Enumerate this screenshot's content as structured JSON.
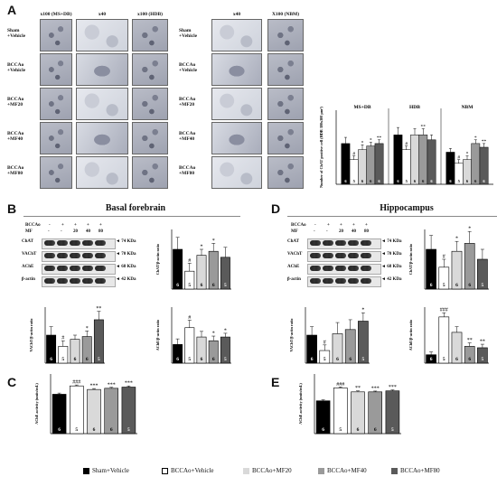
{
  "colors": {
    "black": "#000000",
    "white": "#ffffff",
    "light": "#d9d9d9",
    "mid": "#9a9a9a",
    "dark": "#5a5a5a"
  },
  "panels": {
    "A": {
      "letter": "A",
      "left_cols": [
        "x100  (MS+DB)",
        "x40",
        "x100  (HDB)"
      ],
      "right_cols": [
        "x40",
        "X100 (NBM)"
      ],
      "rows": [
        "Sham\n+Vehicle",
        "BCCAo\n+Vehicle",
        "BCCAo\n+MF20",
        "BCCAo\n+MF40",
        "BCCAo\n+MF80"
      ]
    },
    "B": {
      "letter": "B",
      "title": "Basal forebrain"
    },
    "C": {
      "letter": "C"
    },
    "D": {
      "letter": "D",
      "title": "Hippocampus"
    },
    "E": {
      "letter": "E"
    }
  },
  "blots": {
    "treat_label_bccao": "BCCAo",
    "treat_label_mf": "MF",
    "bccao_signs": [
      "-",
      "+",
      "+",
      "+",
      "+"
    ],
    "mf_doses": [
      "-",
      "-",
      "20",
      "40",
      "80"
    ],
    "rows_B": [
      {
        "name": "ChAT",
        "kda": "74 KDa"
      },
      {
        "name": "VAChT",
        "kda": "70 KDa"
      },
      {
        "name": "AChE",
        "kda": "68 KDa"
      },
      {
        "name": "β-actin",
        "kda": "42 KDa"
      }
    ],
    "rows_D": [
      {
        "name": "ChAT",
        "kda": "74 KDa"
      },
      {
        "name": "VAChT",
        "kda": "70 KDa"
      },
      {
        "name": "AChE",
        "kda": "68 KDa"
      },
      {
        "name": "β-actin",
        "kda": "42 KDa"
      }
    ]
  },
  "chart_data": [
    {
      "id": "A-chat-count",
      "type": "bar",
      "ylabel": "Number of ChAT positive cell (HDB 300x300 μm²)",
      "groups": [
        "MS+DB",
        "HDB",
        "NBM"
      ],
      "series": [
        {
          "name": "Sham+Vehicle",
          "values": [
            33,
            40,
            26
          ]
        },
        {
          "name": "BCCAo+Vehicle",
          "values": [
            20,
            28,
            17
          ]
        },
        {
          "name": "BCCAo+MF20",
          "values": [
            28,
            40,
            20
          ]
        },
        {
          "name": "BCCAo+MF40",
          "values": [
            31,
            40,
            33
          ]
        },
        {
          "name": "BCCAo+MF80",
          "values": [
            33,
            36,
            30
          ]
        }
      ],
      "errors": [
        [
          5,
          6,
          3
        ],
        [
          3,
          3,
          3
        ],
        [
          4,
          5,
          3
        ],
        [
          3,
          5,
          3
        ],
        [
          3,
          4,
          3
        ]
      ],
      "marks": [
        [
          "",
          "",
          ""
        ],
        [
          "#",
          "#",
          "#"
        ],
        [
          "*",
          "",
          "*"
        ],
        [
          "*",
          "**",
          "*"
        ],
        [
          "**",
          "",
          "**"
        ]
      ],
      "n": [
        [
          "6",
          "6",
          "6"
        ],
        [
          "5",
          "5",
          "5"
        ],
        [
          "6",
          "6",
          "6"
        ],
        [
          "6",
          "6",
          "6"
        ],
        [
          "6",
          "6",
          "6"
        ]
      ],
      "ylim": [
        0,
        60
      ]
    },
    {
      "id": "B-chat",
      "type": "bar",
      "ylabel": "ChAT/β-actin ratio",
      "values": [
        1.0,
        0.45,
        0.85,
        0.95,
        0.8
      ],
      "errors": [
        0.3,
        0.2,
        0.15,
        0.2,
        0.25
      ],
      "marks": [
        "",
        "#",
        "*",
        "*",
        ""
      ],
      "n": [
        "6",
        "5",
        "6",
        "6",
        "5"
      ],
      "ylim": [
        0,
        1.5
      ]
    },
    {
      "id": "B-vacht",
      "type": "bar",
      "ylabel": "VAChT/β-actin ratio",
      "values": [
        1.0,
        0.6,
        0.85,
        0.95,
        1.55
      ],
      "errors": [
        0.3,
        0.2,
        0.15,
        0.2,
        0.3
      ],
      "marks": [
        "",
        "#",
        "",
        "*",
        "**"
      ],
      "n": [
        "6",
        "5",
        "6",
        "6",
        "5"
      ],
      "ylim": [
        0,
        2.0
      ]
    },
    {
      "id": "B-ache",
      "type": "bar",
      "ylabel": "AChE/β-actin ratio",
      "values": [
        1.0,
        1.9,
        1.4,
        1.2,
        1.4
      ],
      "errors": [
        0.3,
        0.4,
        0.3,
        0.25,
        0.2
      ],
      "marks": [
        "",
        "#",
        "",
        "*",
        "*"
      ],
      "n": [
        "6",
        "5",
        "6",
        "6",
        "5"
      ],
      "ylim": [
        0,
        3
      ]
    },
    {
      "id": "C-ache-activity",
      "type": "bar",
      "ylabel": "AChE activity (units/mL)",
      "values": [
        1.65,
        2.0,
        1.85,
        1.9,
        1.95
      ],
      "errors": [
        0.05,
        0.04,
        0.04,
        0.04,
        0.05
      ],
      "marks": [
        "",
        "###",
        "***",
        "***",
        "***"
      ],
      "n": [
        "6",
        "5",
        "6",
        "6",
        "5"
      ],
      "ylim": [
        0,
        2.5
      ]
    },
    {
      "id": "D-chat",
      "type": "bar",
      "ylabel": "ChAT/β-actin ratio",
      "values": [
        1.0,
        0.55,
        0.95,
        1.15,
        0.75
      ],
      "errors": [
        0.35,
        0.2,
        0.25,
        0.3,
        0.25
      ],
      "marks": [
        "",
        "#",
        "*",
        "*",
        ""
      ],
      "n": [
        "6",
        "5",
        "6",
        "6",
        "5"
      ],
      "ylim": [
        0,
        1.5
      ]
    },
    {
      "id": "D-vacht",
      "type": "bar",
      "ylabel": "VAChT/β-actin ratio",
      "values": [
        1.0,
        0.45,
        1.05,
        1.2,
        1.5
      ],
      "errors": [
        0.3,
        0.2,
        0.4,
        0.35,
        0.3
      ],
      "marks": [
        "",
        "#",
        "",
        "",
        "*"
      ],
      "n": [
        "6",
        "5",
        "6",
        "6",
        "5"
      ],
      "ylim": [
        0,
        2.0
      ]
    },
    {
      "id": "D-ache",
      "type": "bar",
      "ylabel": "AChE/β-actin ratio",
      "values": [
        0.6,
        3.3,
        2.2,
        1.2,
        1.1
      ],
      "errors": [
        0.2,
        0.3,
        0.4,
        0.25,
        0.25
      ],
      "marks": [
        "",
        "###",
        "",
        "**",
        "**"
      ],
      "n": [
        "6",
        "5",
        "6",
        "6",
        "5"
      ],
      "ylim": [
        0,
        4
      ]
    },
    {
      "id": "E-ache-activity",
      "type": "bar",
      "ylabel": "AChE activity (units/mL)",
      "values": [
        1.65,
        2.3,
        2.1,
        2.1,
        2.15
      ],
      "errors": [
        0.05,
        0.05,
        0.05,
        0.04,
        0.05
      ],
      "marks": [
        "",
        "###",
        "**",
        "***",
        "***"
      ],
      "n": [
        "6",
        "5",
        "6",
        "6",
        "5"
      ],
      "ylim": [
        0,
        3
      ]
    }
  ],
  "legend": [
    {
      "label": "Sham+Vehicle",
      "color": "#000000"
    },
    {
      "label": "BCCAo+Vehicle",
      "color": "#ffffff"
    },
    {
      "label": "BCCAo+MF20",
      "color": "#d9d9d9"
    },
    {
      "label": "BCCAo+MF40",
      "color": "#9a9a9a"
    },
    {
      "label": "BCCAo+MF80",
      "color": "#5a5a5a"
    }
  ]
}
